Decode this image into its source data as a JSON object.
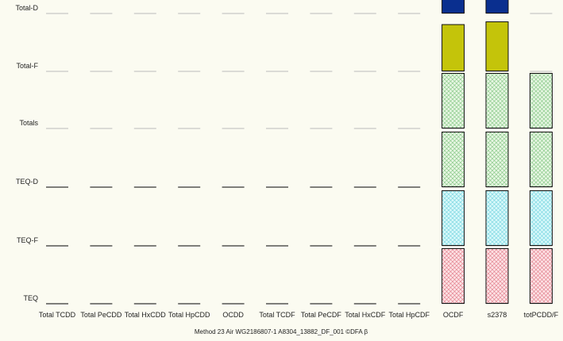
{
  "chart_data": {
    "type": "bar",
    "rows": [
      "Total-D",
      "Total-F",
      "Totals",
      "TEQ-D",
      "TEQ-F",
      "TEQ"
    ],
    "categories": [
      "Total TCDD",
      "Total PeCDD",
      "Total HxCDD",
      "Total HpCDD",
      "OCDD",
      "Total TCDF",
      "Total PeCDF",
      "Total HxCDF",
      "Total HpCDF",
      "OCDF",
      "s2378",
      "totPCDD/F"
    ],
    "cells": {
      "Total-D": [
        0,
        0,
        0,
        0,
        0,
        0,
        0,
        0,
        0,
        0.85,
        0.95,
        0
      ],
      "Total-F": [
        0,
        0,
        0,
        0,
        0,
        0,
        0,
        0,
        0,
        0.85,
        0.9,
        0
      ],
      "Totals": [
        0,
        0,
        0,
        0,
        0,
        0,
        0,
        0,
        0,
        1,
        1,
        1
      ],
      "TEQ-D": [
        0,
        0,
        0,
        0,
        0,
        0,
        0,
        0,
        0,
        1,
        1,
        1
      ],
      "TEQ-F": [
        0,
        0,
        0,
        0,
        0,
        0,
        0,
        0,
        0,
        1,
        1,
        1
      ],
      "TEQ": [
        0,
        0,
        0,
        0,
        0,
        0,
        0,
        0,
        0,
        1,
        1,
        1
      ]
    },
    "row_colors": {
      "Total-D": "#0a2f8f",
      "Total-F": "#c4c40a",
      "Totals": "#c8ecc8",
      "TEQ-D": "#c8ecc8",
      "TEQ-F": "#bff0f5",
      "TEQ": "#f7c4cc"
    },
    "row_patterns": {
      "Total-D": "solid",
      "Total-F": "solid",
      "Totals": "crosshatch",
      "TEQ-D": "crosshatch",
      "TEQ-F": "crosshatch",
      "TEQ": "crosshatch"
    },
    "footer": "Method 23  Air   WG2186807-1  A8304_13882_DF_001   ©DFA β",
    "grid": false
  }
}
